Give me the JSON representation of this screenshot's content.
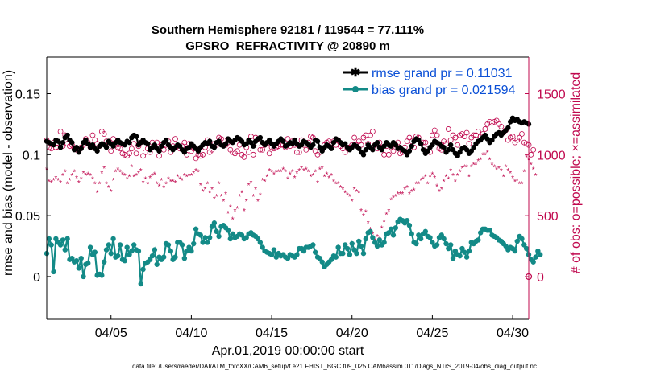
{
  "chart_data": {
    "type": "line",
    "title_line1": "Southern Hemisphere 92181 / 119544 = 77.111%",
    "title_line2": "GPSRO_REFRACTIVITY @ 20890 m",
    "xlabel": "Apr.01,2019 00:00:00 start",
    "ylabel": "rmse and bias (model - observation)",
    "y2label": "# of obs: o=possible; ×=assimilated",
    "xlim": [
      1,
      31
    ],
    "ylim": [
      -0.035,
      0.18
    ],
    "y2lim": [
      -350,
      1800
    ],
    "x_ticks": [
      5,
      10,
      15,
      20,
      25,
      30
    ],
    "x_tick_labels": [
      "04/05",
      "04/10",
      "04/15",
      "04/20",
      "04/25",
      "04/30"
    ],
    "y_ticks": [
      0,
      0.05,
      0.1,
      0.15
    ],
    "y_tick_labels": [
      "0",
      "0.05",
      "0.1",
      "0.15"
    ],
    "y2_ticks": [
      0,
      500,
      1000,
      1500
    ],
    "y2_tick_labels": [
      "0",
      "500",
      "1000",
      "1500"
    ],
    "legend": [
      {
        "label": "rmse grand pr = 0.11031",
        "color": "#000000",
        "marker": "asterisk"
      },
      {
        "label": "bias grand pr = 0.021594",
        "color": "#138a87",
        "marker": "circle"
      }
    ],
    "footer": "data file: /Users/raeder/DAI/ATM_forcXX/CAM6_setup/f.e21.FHIST_BGC.f09_025.CAM6assim.011/Diags_NTrS_2019-04/obs_diag_output.nc",
    "zero_line_label": "0",
    "series": [
      {
        "name": "rmse",
        "color": "#000000",
        "axis": "left",
        "values": [
          0.111,
          0.11,
          0.109,
          0.108,
          0.112,
          0.111,
          0.106,
          0.11,
          0.114,
          0.116,
          0.112,
          0.11,
          0.104,
          0.106,
          0.102,
          0.105,
          0.11,
          0.112,
          0.109,
          0.106,
          0.108,
          0.105,
          0.103,
          0.107,
          0.109,
          0.108,
          0.106,
          0.111,
          0.109,
          0.107,
          0.11,
          0.112,
          0.11,
          0.109,
          0.108,
          0.111,
          0.11,
          0.114,
          0.116,
          0.115,
          0.108,
          0.11,
          0.112,
          0.11,
          0.109,
          0.104,
          0.106,
          0.108,
          0.105,
          0.103,
          0.107,
          0.11,
          0.112,
          0.108,
          0.106,
          0.104,
          0.106,
          0.108,
          0.107,
          0.104,
          0.102,
          0.105,
          0.106,
          0.109,
          0.107,
          0.105,
          0.103,
          0.106,
          0.108,
          0.11,
          0.109,
          0.111,
          0.107,
          0.106,
          0.11,
          0.111,
          0.108,
          0.107,
          0.109,
          0.113,
          0.111,
          0.11,
          0.112,
          0.114,
          0.113,
          0.111,
          0.108,
          0.109,
          0.112,
          0.11,
          0.107,
          0.111,
          0.113,
          0.114,
          0.11,
          0.108,
          0.11,
          0.112,
          0.109,
          0.107,
          0.109,
          0.111,
          0.113,
          0.111,
          0.107,
          0.108,
          0.11,
          0.109,
          0.112,
          0.109,
          0.107,
          0.108,
          0.111,
          0.11,
          0.108,
          0.106,
          0.108,
          0.112,
          0.111,
          0.106,
          0.103,
          0.106,
          0.108,
          0.107,
          0.105,
          0.11,
          0.113,
          0.112,
          0.11,
          0.108,
          0.109,
          0.106,
          0.104,
          0.106,
          0.108,
          0.107,
          0.105,
          0.102,
          0.1,
          0.104,
          0.108,
          0.106,
          0.104,
          0.108,
          0.11,
          0.106,
          0.104,
          0.107,
          0.11,
          0.108,
          0.107,
          0.11,
          0.108,
          0.105,
          0.106,
          0.104,
          0.103,
          0.1,
          0.103,
          0.107,
          0.111,
          0.113,
          0.112,
          0.109,
          0.104,
          0.101,
          0.103,
          0.106,
          0.108,
          0.111,
          0.11,
          0.109,
          0.107,
          0.106,
          0.102,
          0.104,
          0.108,
          0.104,
          0.101,
          0.099,
          0.102,
          0.105,
          0.106,
          0.104,
          0.101,
          0.103,
          0.106,
          0.109,
          0.111,
          0.112,
          0.114,
          0.116,
          0.113,
          0.11,
          0.112,
          0.115,
          0.117,
          0.118,
          0.116,
          0.118,
          0.12,
          0.122,
          0.127,
          0.13,
          0.128,
          0.129,
          0.127,
          0.126,
          0.127,
          0.126,
          0.125
        ]
      },
      {
        "name": "bias",
        "color": "#138a87",
        "axis": "left",
        "values": [
          0.019,
          0.031,
          0.026,
          0.004,
          0.031,
          0.028,
          0.026,
          0.03,
          0.022,
          0.031,
          0.014,
          0.015,
          0.012,
          0.013,
          0.007,
          0.015,
          0.0,
          0.01,
          0.011,
          0.024,
          0.018,
          0.02,
          0.001,
          0.002,
          0.001,
          0.012,
          0.022,
          0.026,
          0.019,
          0.031,
          0.016,
          0.017,
          0.026,
          0.014,
          0.013,
          0.024,
          0.018,
          0.021,
          0.026,
          0.022,
          0.021,
          -0.006,
          0.006,
          0.011,
          0.012,
          0.014,
          0.017,
          0.022,
          0.01,
          0.016,
          0.014,
          0.016,
          0.027,
          0.026,
          0.021,
          0.014,
          0.016,
          0.028,
          0.028,
          0.026,
          0.015,
          0.021,
          0.024,
          0.021,
          0.027,
          0.039,
          0.035,
          0.034,
          0.028,
          0.032,
          0.028,
          0.032,
          0.041,
          0.044,
          0.037,
          0.033,
          0.041,
          0.042,
          0.04,
          0.038,
          0.031,
          0.035,
          0.032,
          0.033,
          0.035,
          0.034,
          0.031,
          0.032,
          0.035,
          0.036,
          0.034,
          0.033,
          0.031,
          0.028,
          0.024,
          0.021,
          0.02,
          0.019,
          0.018,
          0.022,
          0.016,
          0.019,
          0.017,
          0.018,
          0.016,
          0.015,
          0.018,
          0.017,
          0.016,
          0.018,
          0.023,
          0.023,
          0.021,
          0.024,
          0.024,
          0.025,
          0.026,
          0.02,
          0.016,
          0.015,
          0.012,
          0.008,
          0.01,
          0.012,
          0.014,
          0.017,
          0.016,
          0.024,
          0.019,
          0.019,
          0.026,
          0.023,
          0.018,
          0.027,
          0.022,
          0.019,
          0.029,
          0.025,
          0.019,
          0.031,
          0.036,
          0.037,
          0.032,
          0.028,
          0.025,
          0.03,
          0.026,
          0.028,
          0.035,
          0.036,
          0.039,
          0.034,
          0.04,
          0.045,
          0.047,
          0.046,
          0.044,
          0.046,
          0.042,
          0.035,
          0.028,
          0.027,
          0.034,
          0.031,
          0.035,
          0.037,
          0.033,
          0.032,
          0.028,
          0.025,
          0.026,
          0.032,
          0.034,
          0.031,
          0.027,
          0.023,
          0.026,
          0.015,
          0.021,
          0.018,
          0.017,
          0.023,
          0.02,
          0.016,
          0.021,
          0.028,
          0.027,
          0.029,
          0.03,
          0.036,
          0.039,
          0.039,
          0.038,
          0.038,
          0.034,
          0.033,
          0.032,
          0.03,
          0.029,
          0.027,
          0.025,
          0.022,
          0.024,
          0.023,
          0.021,
          0.029,
          0.033,
          0.031,
          0.026,
          0.023,
          0.018,
          0.014,
          0.012,
          0.016,
          0.021,
          0.018
        ]
      },
      {
        "name": "possible",
        "color": "#c0084e",
        "axis": "right",
        "marker": "open-circle",
        "values": [
          1120,
          1060,
          1050,
          1100,
          1060,
          1060,
          1190,
          1070,
          1160,
          1090,
          1070,
          1080,
          1050,
          1040,
          1030,
          1060,
          1080,
          1130,
          1100,
          1060,
          1160,
          1120,
          1090,
          1070,
          1190,
          1170,
          1110,
          1100,
          1030,
          1130,
          1080,
          1060,
          1050,
          1010,
          1000,
          990,
          1010,
          1050,
          1090,
          1010,
          1070,
          1100,
          990,
          1020,
          1050,
          1020,
          1100,
          1070,
          1100,
          990,
          1080,
          1040,
          1080,
          1110,
          1020,
          1070,
          1130,
          1070,
          1050,
          1070,
          1100,
          1000,
          1090,
          1030,
          1050,
          970,
          1000,
          990,
          1000,
          1060,
          1120,
          1020,
          1040,
          1090,
          1080,
          1140,
          1130,
          1120,
          1080,
          1100,
          1040,
          1020,
          1010,
          1030,
          1080,
          1000,
          980,
          1060,
          1020,
          1150,
          1000,
          1140,
          1090,
          1040,
          1040,
          1080,
          1090,
          1010,
          1060,
          1050,
          1060,
          1070,
          1080,
          1080,
          1060,
          1130,
          1070,
          1110,
          1080,
          1020,
          1020,
          1120,
          1080,
          1040,
          1100,
          1150,
          1140,
          1030,
          1000,
          1020,
          1040,
          1080,
          1100,
          1110,
          1060,
          1110,
          1080,
          1120,
          1070,
          1050,
          1020,
          1050,
          1060,
          1080,
          1140,
          1080,
          1110,
          1080,
          1140,
          1160,
          1090,
          1160,
          1190,
          1080,
          1050,
          1100,
          1060,
          1000,
          1070,
          1000,
          1060,
          1030,
          1080,
          1100,
          1010,
          1020,
          1060,
          1110,
          1140,
          1110,
          1060,
          1150,
          1140,
          1090,
          1100,
          1100,
          1050,
          1020,
          1160,
          1200,
          1160,
          1050,
          1040,
          1110,
          1090,
          1210,
          1120,
          1160,
          1140,
          1080,
          1160,
          1170,
          1150,
          1180,
          1090,
          1140,
          1160,
          1160,
          1190,
          1150,
          1170,
          1210,
          1250,
          1270,
          1260,
          1270,
          1280,
          1250,
          1230,
          1180,
          1200,
          1120,
          1140,
          1150,
          1100,
          1120,
          1140,
          1170,
          1100,
          1090,
          1080,
          1000,
          1040
        ]
      },
      {
        "name": "assimilated",
        "color": "#c0084e",
        "axis": "right",
        "marker": "asterisk",
        "values": [
          880,
          780,
          770,
          790,
          810,
          790,
          770,
          830,
          860,
          760,
          790,
          830,
          860,
          810,
          770,
          800,
          850,
          830,
          840,
          830,
          800,
          760,
          690,
          760,
          850,
          890,
          760,
          730,
          700,
          790,
          860,
          880,
          860,
          840,
          830,
          800,
          820,
          900,
          820,
          830,
          850,
          870,
          770,
          800,
          760,
          810,
          830,
          840,
          760,
          740,
          790,
          730,
          760,
          800,
          780,
          780,
          770,
          820,
          800,
          790,
          830,
          820,
          830,
          830,
          850,
          870,
          860,
          750,
          700,
          720,
          760,
          690,
          720,
          640,
          660,
          760,
          660,
          620,
          680,
          520,
          570,
          470,
          540,
          560,
          660,
          690,
          540,
          620,
          750,
          770,
          660,
          720,
          620,
          670,
          790,
          780,
          820,
          870,
          860,
          840,
          860,
          860,
          860,
          880,
          860,
          800,
          840,
          860,
          810,
          850,
          870,
          890,
          870,
          880,
          860,
          820,
          830,
          860,
          770,
          880,
          890,
          820,
          840,
          810,
          830,
          780,
          760,
          760,
          730,
          720,
          690,
          670,
          660,
          620,
          720,
          700,
          690,
          540,
          500,
          530,
          440,
          390,
          350,
          300,
          330,
          310,
          400,
          450,
          510,
          540,
          630,
          650,
          660,
          680,
          680,
          680,
          720,
          730,
          680,
          700,
          710,
          760,
          760,
          790,
          800,
          820,
          760,
          820,
          840,
          810,
          740,
          700,
          720,
          780,
          820,
          800,
          870,
          830,
          780,
          830,
          860,
          890,
          900,
          900,
          820,
          900,
          920,
          920,
          950,
          960,
          1000,
          1000,
          1020,
          960,
          920,
          900,
          880,
          890,
          870,
          820,
          900,
          870,
          850,
          810,
          780,
          790,
          760,
          760,
          860,
          980,
          960,
          920,
          880,
          830
        ]
      }
    ]
  }
}
